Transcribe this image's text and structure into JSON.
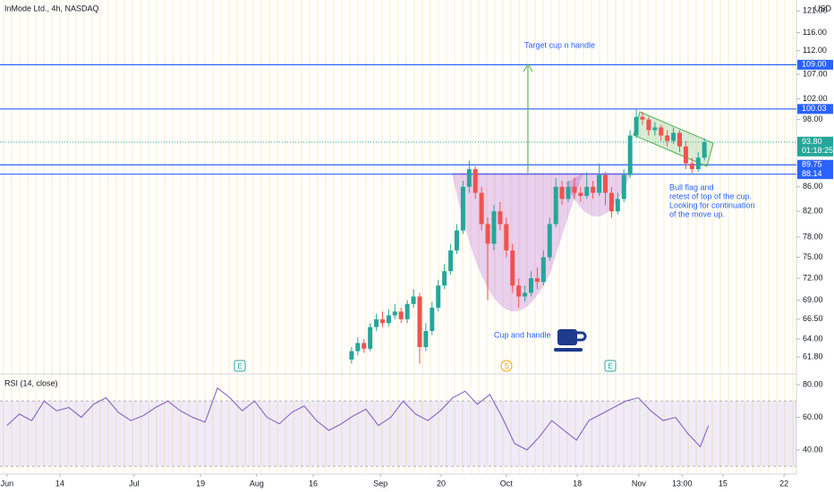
{
  "chart_data": {
    "type": "candlestick",
    "title": "InMode Ltd., 4h, NASDAQ",
    "currency": "USD",
    "log_scale": true,
    "ylim": [
      59.8,
      123.6
    ],
    "yticks": [
      {
        "value": 121,
        "label": "121.00"
      },
      {
        "value": 116,
        "label": "116.00"
      },
      {
        "value": 112,
        "label": "112.00"
      },
      {
        "value": 107,
        "label": "107.00"
      },
      {
        "value": 102,
        "label": "102.00"
      },
      {
        "value": 98,
        "label": "98.00"
      },
      {
        "value": 86,
        "label": "86.00"
      },
      {
        "value": 82,
        "label": "82.00"
      },
      {
        "value": 78,
        "label": "78.00"
      },
      {
        "value": 75,
        "label": "75.00"
      },
      {
        "value": 72,
        "label": "72.00"
      },
      {
        "value": 69,
        "label": "69.00"
      },
      {
        "value": 66.5,
        "label": "66.50"
      },
      {
        "value": 64,
        "label": "64.00"
      },
      {
        "value": 61.8,
        "label": "61.80"
      }
    ],
    "xlim": [
      -1.7,
      191.3
    ],
    "xticks": [
      {
        "value": 0,
        "label": "Jun"
      },
      {
        "value": 12.8,
        "label": "14"
      },
      {
        "value": 30.8,
        "label": "Jul"
      },
      {
        "value": 46.9,
        "label": "19"
      },
      {
        "value": 60.5,
        "label": "Aug"
      },
      {
        "value": 74.2,
        "label": "16"
      },
      {
        "value": 90.5,
        "label": "Sep"
      },
      {
        "value": 105.2,
        "label": "20"
      },
      {
        "value": 121,
        "label": "Oct"
      },
      {
        "value": 138.2,
        "label": "18"
      },
      {
        "value": 153.1,
        "label": "Nov"
      },
      {
        "value": 163.6,
        "label": "13:00"
      },
      {
        "value": 173.5,
        "label": "15"
      },
      {
        "value": 188.3,
        "label": "22"
      }
    ],
    "up_color": "#26a69a",
    "down_color": "#ef5350",
    "candles": {
      "x": [
        83.5,
        85,
        86.5,
        88,
        89.5,
        91,
        92.5,
        94,
        95.5,
        97,
        98.5,
        100,
        101.5,
        103,
        104.5,
        106,
        107.5,
        109,
        110.5,
        112,
        113.5,
        115,
        116.5,
        118,
        119.5,
        121,
        122.5,
        124,
        125.5,
        127,
        128.5,
        130,
        131.5,
        133,
        134.5,
        136,
        137.5,
        139,
        140.5,
        142,
        143.5,
        145,
        146.5,
        148,
        149.5,
        151,
        152.5,
        154,
        155.5,
        157,
        158.5,
        160,
        161.5,
        163,
        164.5,
        166,
        167.5,
        169
      ],
      "open": [
        61.5,
        62.5,
        63.5,
        62.8,
        65.5,
        66.5,
        66,
        67,
        67.5,
        66.5,
        68.5,
        69.5,
        63,
        65,
        68,
        71,
        73,
        76,
        79,
        86,
        89,
        85,
        80,
        77,
        82,
        80,
        76,
        71,
        69.5,
        70,
        72,
        71.5,
        75,
        80,
        86,
        84,
        86,
        85,
        84.5,
        86,
        85,
        88,
        85,
        82,
        84,
        88,
        95,
        98.5,
        98,
        96,
        96.5,
        95,
        94,
        95.5,
        93,
        90,
        89,
        91
      ],
      "high": [
        63,
        64.2,
        64,
        66,
        67.2,
        67.5,
        67.8,
        68.5,
        68,
        69,
        70.5,
        70,
        66,
        68.8,
        71.8,
        74,
        77,
        80,
        87,
        90.5,
        89.5,
        86,
        81,
        83,
        83.5,
        81,
        77,
        72,
        71,
        73,
        73.5,
        76,
        81,
        87.5,
        87,
        87,
        87.5,
        86,
        88.5,
        87,
        90,
        88.5,
        86,
        85,
        89,
        96,
        100,
        99.5,
        98.5,
        97.5,
        97,
        96,
        96.5,
        96,
        94,
        91,
        92,
        94.5
      ],
      "low": [
        61,
        62,
        62.3,
        62.5,
        65,
        65.5,
        65.6,
        66.5,
        66,
        66,
        68,
        61,
        62.5,
        64.5,
        67.5,
        70.5,
        72.5,
        75.5,
        78.5,
        85,
        84,
        79,
        69,
        76,
        79,
        75,
        70,
        68,
        68.8,
        69.5,
        70.5,
        71,
        74.5,
        79.5,
        83,
        83.5,
        84,
        83.5,
        84,
        84,
        84.5,
        83,
        81,
        81.5,
        83.5,
        87.5,
        94.5,
        97,
        95,
        95,
        94,
        93,
        93.5,
        92,
        89,
        88.3,
        88.5,
        90.5
      ],
      "close": [
        62.5,
        63.5,
        62.8,
        65.5,
        66.5,
        66,
        67,
        67.5,
        66.5,
        68.5,
        69.5,
        63,
        65,
        68,
        71,
        73,
        76,
        79,
        86,
        89,
        85,
        80,
        77,
        82,
        80,
        76,
        71,
        69.5,
        70,
        72,
        71.5,
        75,
        80,
        86,
        84,
        86,
        85,
        84.5,
        86,
        85,
        88,
        85,
        82,
        84,
        88,
        95,
        98.5,
        98,
        96,
        96.5,
        95,
        94,
        95.5,
        93,
        90,
        89,
        91,
        93.8
      ]
    },
    "level_color": "#2962ff",
    "levels": [
      {
        "value": 109,
        "label": "109.00"
      },
      {
        "value": 100.03,
        "label": "100.03"
      },
      {
        "value": 89.75,
        "label": "89.75"
      },
      {
        "value": 88.14,
        "label": "88.14"
      }
    ],
    "last_price": {
      "value": 93.8,
      "label": "93.80",
      "countdown": "01:18:25"
    },
    "annotations": {
      "target": "Target cup n handle",
      "cup": "Cup and handle",
      "flag": [
        "Bull flag and",
        "retest of top of the cup.",
        "Looking for continuation",
        "of the move up."
      ]
    },
    "events": [
      "E",
      "S",
      "E"
    ],
    "indicator": {
      "type": "line",
      "title": "RSI (14, close)",
      "color": "#7e57c2",
      "band": [
        30,
        70
      ],
      "ylim": [
        25.2,
        86.6
      ],
      "yticks": [
        {
          "value": 80,
          "label": "80.00"
        },
        {
          "value": 60,
          "label": "60.00"
        },
        {
          "value": 40,
          "label": "40.00"
        }
      ],
      "x": [
        0,
        3,
        6,
        9,
        12,
        15,
        18,
        21,
        24,
        27,
        30,
        33,
        36,
        39,
        42,
        45,
        48,
        51,
        54,
        57,
        60,
        63,
        66,
        69,
        72,
        75,
        78,
        81,
        84,
        87,
        90,
        93,
        96,
        99,
        102,
        105,
        108,
        111,
        114,
        117,
        120,
        123,
        126,
        129,
        132,
        135,
        138,
        141,
        144,
        147,
        150,
        153,
        156,
        159,
        162,
        165,
        168,
        170
      ],
      "values": [
        55,
        62,
        58,
        70,
        64,
        66,
        60,
        68,
        72,
        63,
        58,
        61,
        66,
        70,
        64,
        60,
        57,
        78,
        72,
        64,
        70,
        60,
        56,
        63,
        67,
        58,
        52,
        56,
        61,
        65,
        55,
        60,
        70,
        62,
        58,
        64,
        72,
        76,
        68,
        74,
        60,
        44,
        40,
        48,
        58,
        52,
        46,
        58,
        62,
        66,
        70,
        72,
        64,
        58,
        60,
        50,
        42,
        55
      ]
    }
  }
}
